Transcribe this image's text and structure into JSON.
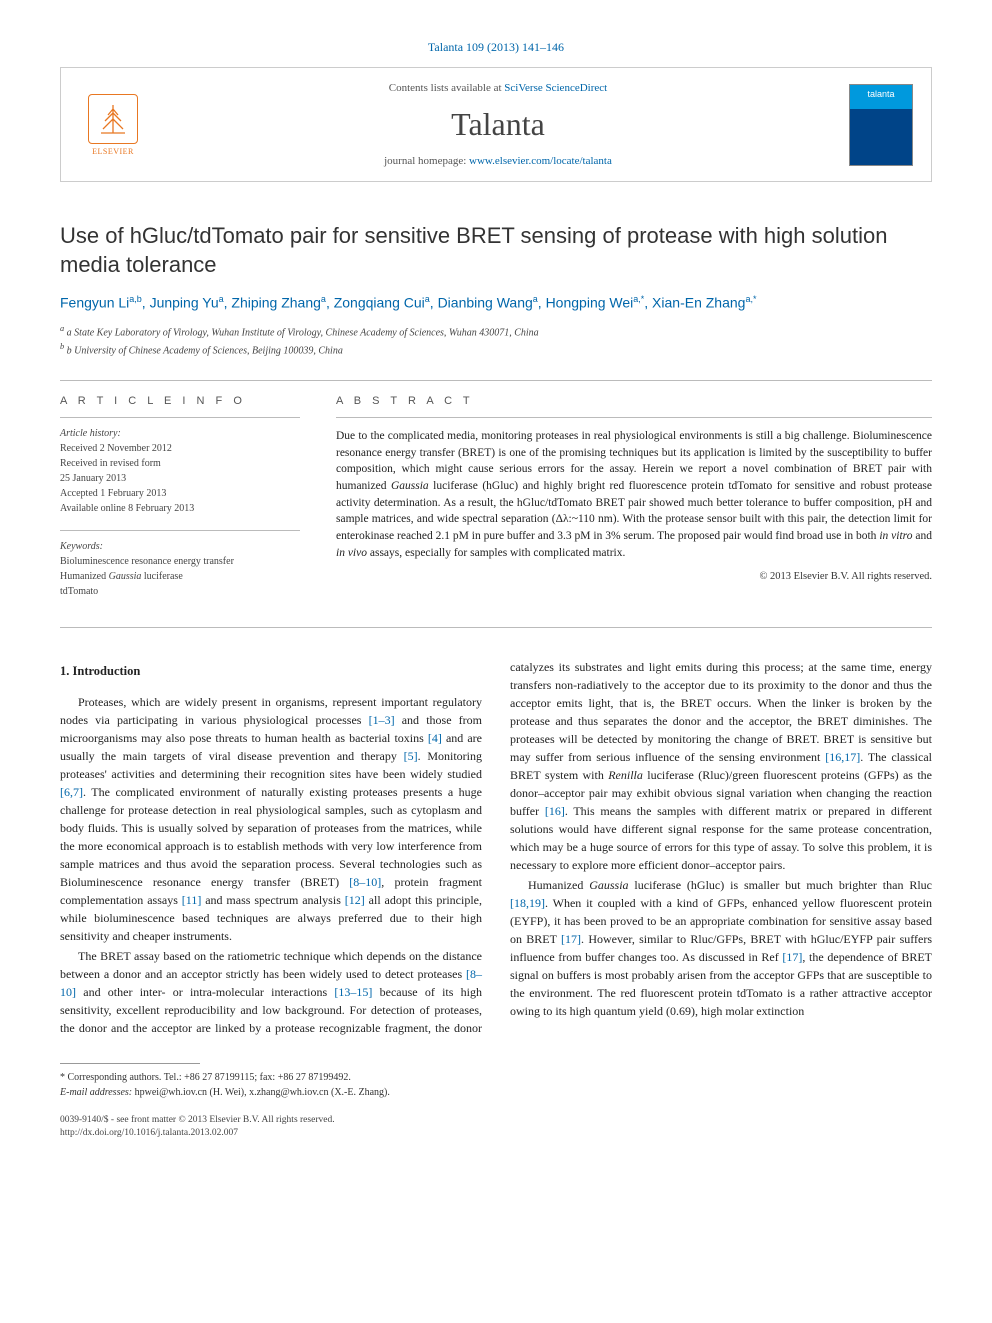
{
  "journal_ref": "Talanta 109 (2013) 141–146",
  "header": {
    "contents_prefix": "Contents lists available at ",
    "contents_link": "SciVerse ScienceDirect",
    "journal_title": "Talanta",
    "homepage_prefix": "journal homepage: ",
    "homepage_url": "www.elsevier.com/locate/talanta",
    "elsevier_label": "ELSEVIER",
    "cover_label": "talanta"
  },
  "article": {
    "title": "Use of hGluc/tdTomato pair for sensitive BRET sensing of protease with high solution media tolerance",
    "authors_html": "Fengyun Li<sup>a,b</sup>, Junping Yu<sup>a</sup>, Zhiping Zhang<sup>a</sup>, Zongqiang Cui<sup>a</sup>, Dianbing Wang<sup>a</sup>, Hongping Wei<sup>a,*</sup>, Xian-En Zhang<sup>a,*</sup>",
    "affiliations": [
      "a State Key Laboratory of Virology, Wuhan Institute of Virology, Chinese Academy of Sciences, Wuhan 430071, China",
      "b University of Chinese Academy of Sciences, Beijing 100039, China"
    ]
  },
  "info": {
    "header": "A R T I C L E  I N F O",
    "history_label": "Article history:",
    "history": [
      "Received 2 November 2012",
      "Received in revised form",
      "25 January 2013",
      "Accepted 1 February 2013",
      "Available online 8 February 2013"
    ],
    "keywords_label": "Keywords:",
    "keywords": [
      "Bioluminescence resonance energy transfer",
      "Humanized Gaussia luciferase",
      "tdTomato"
    ]
  },
  "abstract": {
    "header": "A B S T R A C T",
    "text": "Due to the complicated media, monitoring proteases in real physiological environments is still a big challenge. Bioluminescence resonance energy transfer (BRET) is one of the promising techniques but its application is limited by the susceptibility to buffer composition, which might cause serious errors for the assay. Herein we report a novel combination of BRET pair with humanized Gaussia luciferase (hGluc) and highly bright red fluorescence protein tdTomato for sensitive and robust protease activity determination. As a result, the hGluc/tdTomato BRET pair showed much better tolerance to buffer composition, pH and sample matrices, and wide spectral separation (Δλ:~110 nm). With the protease sensor built with this pair, the detection limit for enterokinase reached 2.1 pM in pure buffer and 3.3 pM in 3% serum. The proposed pair would find broad use in both in vitro and in vivo assays, especially for samples with complicated matrix.",
    "copyright": "© 2013 Elsevier B.V. All rights reserved."
  },
  "body": {
    "heading": "1. Introduction",
    "p1": "Proteases, which are widely present in organisms, represent important regulatory nodes via participating in various physiological processes [1–3] and those from microorganisms may also pose threats to human health as bacterial toxins [4] and are usually the main targets of viral disease prevention and therapy [5]. Monitoring proteases' activities and determining their recognition sites have been widely studied [6,7]. The complicated environment of naturally existing proteases presents a huge challenge for protease detection in real physiological samples, such as cytoplasm and body fluids. This is usually solved by separation of proteases from the matrices, while the more economical approach is to establish methods with very low interference from sample matrices and thus avoid the separation process. Several technologies such as Bioluminescence resonance energy transfer (BRET) [8–10], protein fragment complementation assays [11] and mass spectrum analysis [12] all adopt this principle, while bioluminescence based techniques are always preferred due to their high sensitivity and cheaper instruments.",
    "p2": "The BRET assay based on the ratiometric technique which depends on the distance between a donor and an acceptor strictly has been widely used to detect proteases [8–10] and other inter- or intra-molecular interactions [13–15] because of its high sensitivity, excellent reproducibility and low background. For detection of proteases, the donor and the acceptor are linked by a protease recognizable fragment, the donor catalyzes its substrates and light emits during this process; at the same time, energy transfers non-radiatively to the acceptor due to its proximity to the donor and thus the acceptor emits light, that is, the BRET occurs. When the linker is broken by the protease and thus separates the donor and the acceptor, the BRET diminishes. The proteases will be detected by monitoring the change of BRET. BRET is sensitive but may suffer from serious influence of the sensing environment [16,17]. The classical BRET system with Renilla luciferase (Rluc)/green fluorescent proteins (GFPs) as the donor–acceptor pair may exhibit obvious signal variation when changing the reaction buffer [16]. This means the samples with different matrix or prepared in different solutions would have different signal response for the same protease concentration, which may be a huge source of errors for this type of assay. To solve this problem, it is necessary to explore more efficient donor–acceptor pairs.",
    "p3": "Humanized Gaussia luciferase (hGluc) is smaller but much brighter than Rluc [18,19]. When it coupled with a kind of GFPs, enhanced yellow fluorescent protein (EYFP), it has been proved to be an appropriate combination for sensitive assay based on BRET [17]. However, similar to Rluc/GFPs, BRET with hGluc/EYFP pair suffers influence from buffer changes too. As discussed in Ref [17], the dependence of BRET signal on buffers is most probably arisen from the acceptor GFPs that are susceptible to the environment. The red fluorescent protein tdTomato is a rather attractive acceptor owing to its high quantum yield (0.69), high molar extinction"
  },
  "footnotes": {
    "corresponding": "* Corresponding authors. Tel.: +86 27 87199115; fax: +86 27 87199492.",
    "emails_label": "E-mail addresses:",
    "emails": " hpwei@wh.iov.cn (H. Wei), x.zhang@wh.iov.cn (X.-E. Zhang)."
  },
  "bottom": {
    "line1": "0039-9140/$ - see front matter © 2013 Elsevier B.V. All rights reserved.",
    "line2": "http://dx.doi.org/10.1016/j.talanta.2013.02.007"
  },
  "colors": {
    "link": "#0066aa",
    "elsevier_orange": "#e87722",
    "text": "#222222",
    "heading": "#333333",
    "border": "#cccccc"
  }
}
